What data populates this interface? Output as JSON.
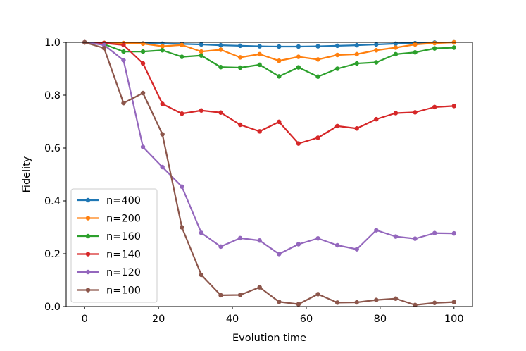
{
  "chart_data": {
    "type": "line",
    "title": "",
    "xlabel": "Evolution time",
    "ylabel": "Fidelity",
    "xlim": [
      -5,
      105
    ],
    "ylim": [
      0.0,
      1.0
    ],
    "xticks": [
      0,
      20,
      40,
      60,
      80,
      100
    ],
    "yticks": [
      0.0,
      0.2,
      0.4,
      0.6,
      0.8,
      1.0
    ],
    "xtick_labels": [
      "0",
      "20",
      "40",
      "60",
      "80",
      "100"
    ],
    "ytick_labels": [
      "0.0",
      "0.2",
      "0.4",
      "0.6",
      "0.8",
      "1.0"
    ],
    "grid": false,
    "legend_position": "lower-left",
    "x": [
      0,
      5.26,
      10.53,
      15.79,
      21.05,
      26.32,
      31.58,
      36.84,
      42.11,
      47.37,
      52.63,
      57.89,
      63.16,
      68.42,
      73.68,
      78.95,
      84.21,
      89.47,
      94.74,
      100
    ],
    "series": [
      {
        "name": "n=400",
        "color": "#1f77b4",
        "values": [
          1.0,
          0.998,
          0.997,
          0.996,
          0.995,
          0.994,
          0.992,
          0.989,
          0.987,
          0.985,
          0.984,
          0.984,
          0.985,
          0.987,
          0.989,
          0.992,
          0.995,
          0.997,
          0.999,
          1.0
        ]
      },
      {
        "name": "n=200",
        "color": "#ff7f0e",
        "values": [
          1.0,
          0.998,
          0.997,
          0.995,
          0.985,
          0.99,
          0.965,
          0.972,
          0.943,
          0.955,
          0.93,
          0.945,
          0.935,
          0.952,
          0.955,
          0.97,
          0.98,
          0.992,
          0.997,
          1.0
        ]
      },
      {
        "name": "n=160",
        "color": "#2ca02c",
        "values": [
          1.0,
          0.993,
          0.965,
          0.965,
          0.97,
          0.945,
          0.95,
          0.906,
          0.904,
          0.915,
          0.871,
          0.905,
          0.87,
          0.9,
          0.92,
          0.924,
          0.955,
          0.962,
          0.977,
          0.98
        ]
      },
      {
        "name": "n=140",
        "color": "#d62728",
        "values": [
          1.0,
          0.997,
          0.99,
          0.92,
          0.767,
          0.73,
          0.742,
          0.734,
          0.688,
          0.663,
          0.699,
          0.617,
          0.639,
          0.683,
          0.674,
          0.709,
          0.732,
          0.735,
          0.755,
          0.759
        ]
      },
      {
        "name": "n=120",
        "color": "#9467bd",
        "values": [
          1.0,
          0.99,
          0.932,
          0.604,
          0.528,
          0.454,
          0.279,
          0.227,
          0.259,
          0.25,
          0.199,
          0.236,
          0.258,
          0.232,
          0.217,
          0.289,
          0.265,
          0.257,
          0.278,
          0.277
        ]
      },
      {
        "name": "n=100",
        "color": "#8c564b",
        "values": [
          1.0,
          0.978,
          0.77,
          0.808,
          0.652,
          0.3,
          0.12,
          0.043,
          0.044,
          0.073,
          0.018,
          0.009,
          0.047,
          0.015,
          0.016,
          0.025,
          0.03,
          0.006,
          0.014,
          0.017
        ]
      }
    ]
  }
}
